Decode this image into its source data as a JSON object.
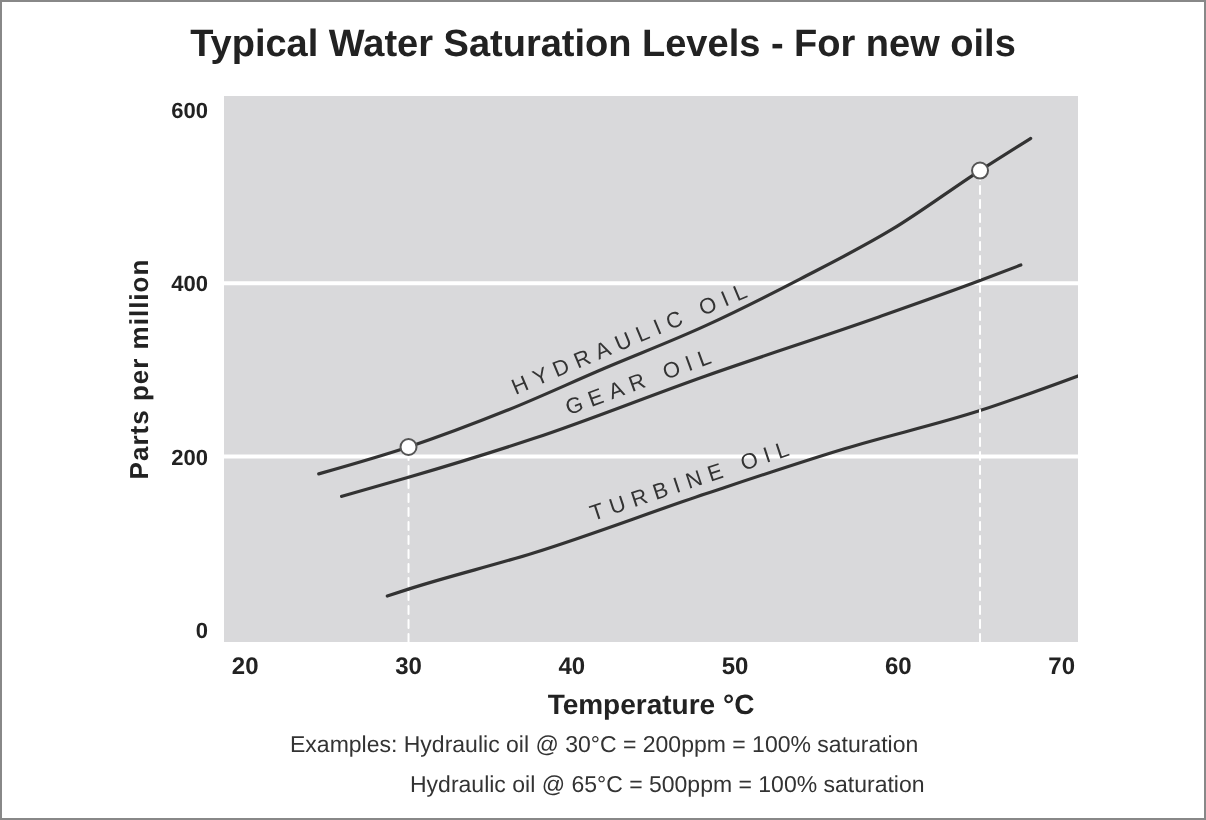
{
  "chart_data": {
    "type": "line",
    "title": "Typical Water Saturation Levels - For new oils",
    "xlabel": "Temperature °C",
    "ylabel": "Parts per million",
    "xlim": [
      18.7,
      71
    ],
    "xticks": [
      20,
      30,
      40,
      50,
      60,
      70
    ],
    "ylim": [
      -14,
      616
    ],
    "yticks": [
      0,
      200,
      400,
      600
    ],
    "grid": "y",
    "series": [
      {
        "name": "HYDRAULIC OIL",
        "color": "#333333",
        "x": [
          24.5,
          30,
          36,
          41.9,
          48.2,
          54,
          59.6,
          65,
          68.1
        ],
        "values": [
          180,
          211,
          253,
          301,
          351,
          405,
          462,
          530,
          567
        ]
      },
      {
        "name": "GEAR OIL",
        "color": "#333333",
        "x": [
          25.9,
          30,
          37.7,
          48.2,
          58.8,
          65,
          67.5
        ],
        "values": [
          154,
          176,
          221,
          293,
          361,
          403,
          421
        ]
      },
      {
        "name": "TURBINE OIL",
        "color": "#333333",
        "x": [
          28.7,
          30,
          37.7,
          48.2,
          56.7,
          65,
          71
        ],
        "values": [
          39,
          47,
          89,
          157,
          209,
          253,
          293
        ]
      },
      {
        "type": "line",
        "color": "#ffffff",
        "line_style": "dashed",
        "x": [
          30,
          30
        ],
        "values": [
          -14,
          211
        ]
      },
      {
        "type": "line",
        "color": "#ffffff",
        "line_style": "dashed",
        "x": [
          65,
          65
        ],
        "values": [
          -14,
          530
        ]
      },
      {
        "type": "scatter",
        "color": "#ffffff",
        "marker": "circle",
        "x": [
          30,
          65
        ],
        "values": [
          211,
          530
        ]
      }
    ],
    "annotations": [
      "Examples: Hydraulic oil @ 30°C = 200ppm = 100% saturation",
      "Hydraulic oil @ 65°C = 500ppm = 100% saturation"
    ]
  }
}
